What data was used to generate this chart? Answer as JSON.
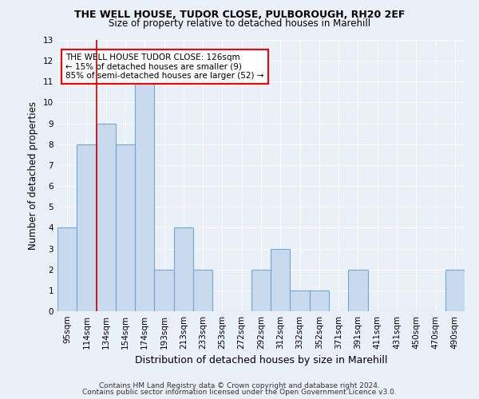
{
  "title1": "THE WELL HOUSE, TUDOR CLOSE, PULBOROUGH, RH20 2EF",
  "title2": "Size of property relative to detached houses in Marehill",
  "xlabel": "Distribution of detached houses by size in Marehill",
  "ylabel": "Number of detached properties",
  "categories": [
    "95sqm",
    "114sqm",
    "134sqm",
    "154sqm",
    "174sqm",
    "193sqm",
    "213sqm",
    "233sqm",
    "253sqm",
    "272sqm",
    "292sqm",
    "312sqm",
    "332sqm",
    "352sqm",
    "371sqm",
    "391sqm",
    "411sqm",
    "431sqm",
    "450sqm",
    "470sqm",
    "490sqm"
  ],
  "values": [
    4,
    8,
    9,
    8,
    11,
    2,
    4,
    2,
    0,
    0,
    2,
    3,
    1,
    1,
    0,
    2,
    0,
    0,
    0,
    0,
    2
  ],
  "bar_color": "#c9d9ee",
  "bar_edge_color": "#6fa8d0",
  "background_color": "#eaf0f8",
  "grid_color": "#ffffff",
  "reference_line_color": "#cc0000",
  "ylim": [
    0,
    13
  ],
  "yticks": [
    0,
    1,
    2,
    3,
    4,
    5,
    6,
    7,
    8,
    9,
    10,
    11,
    12,
    13
  ],
  "annotation_title": "THE WELL HOUSE TUDOR CLOSE: 126sqm",
  "annotation_line1": "← 15% of detached houses are smaller (9)",
  "annotation_line2": "85% of semi-detached houses are larger (52) →",
  "footnote1": "Contains HM Land Registry data © Crown copyright and database right 2024.",
  "footnote2": "Contains public sector information licensed under the Open Government Licence v3.0."
}
